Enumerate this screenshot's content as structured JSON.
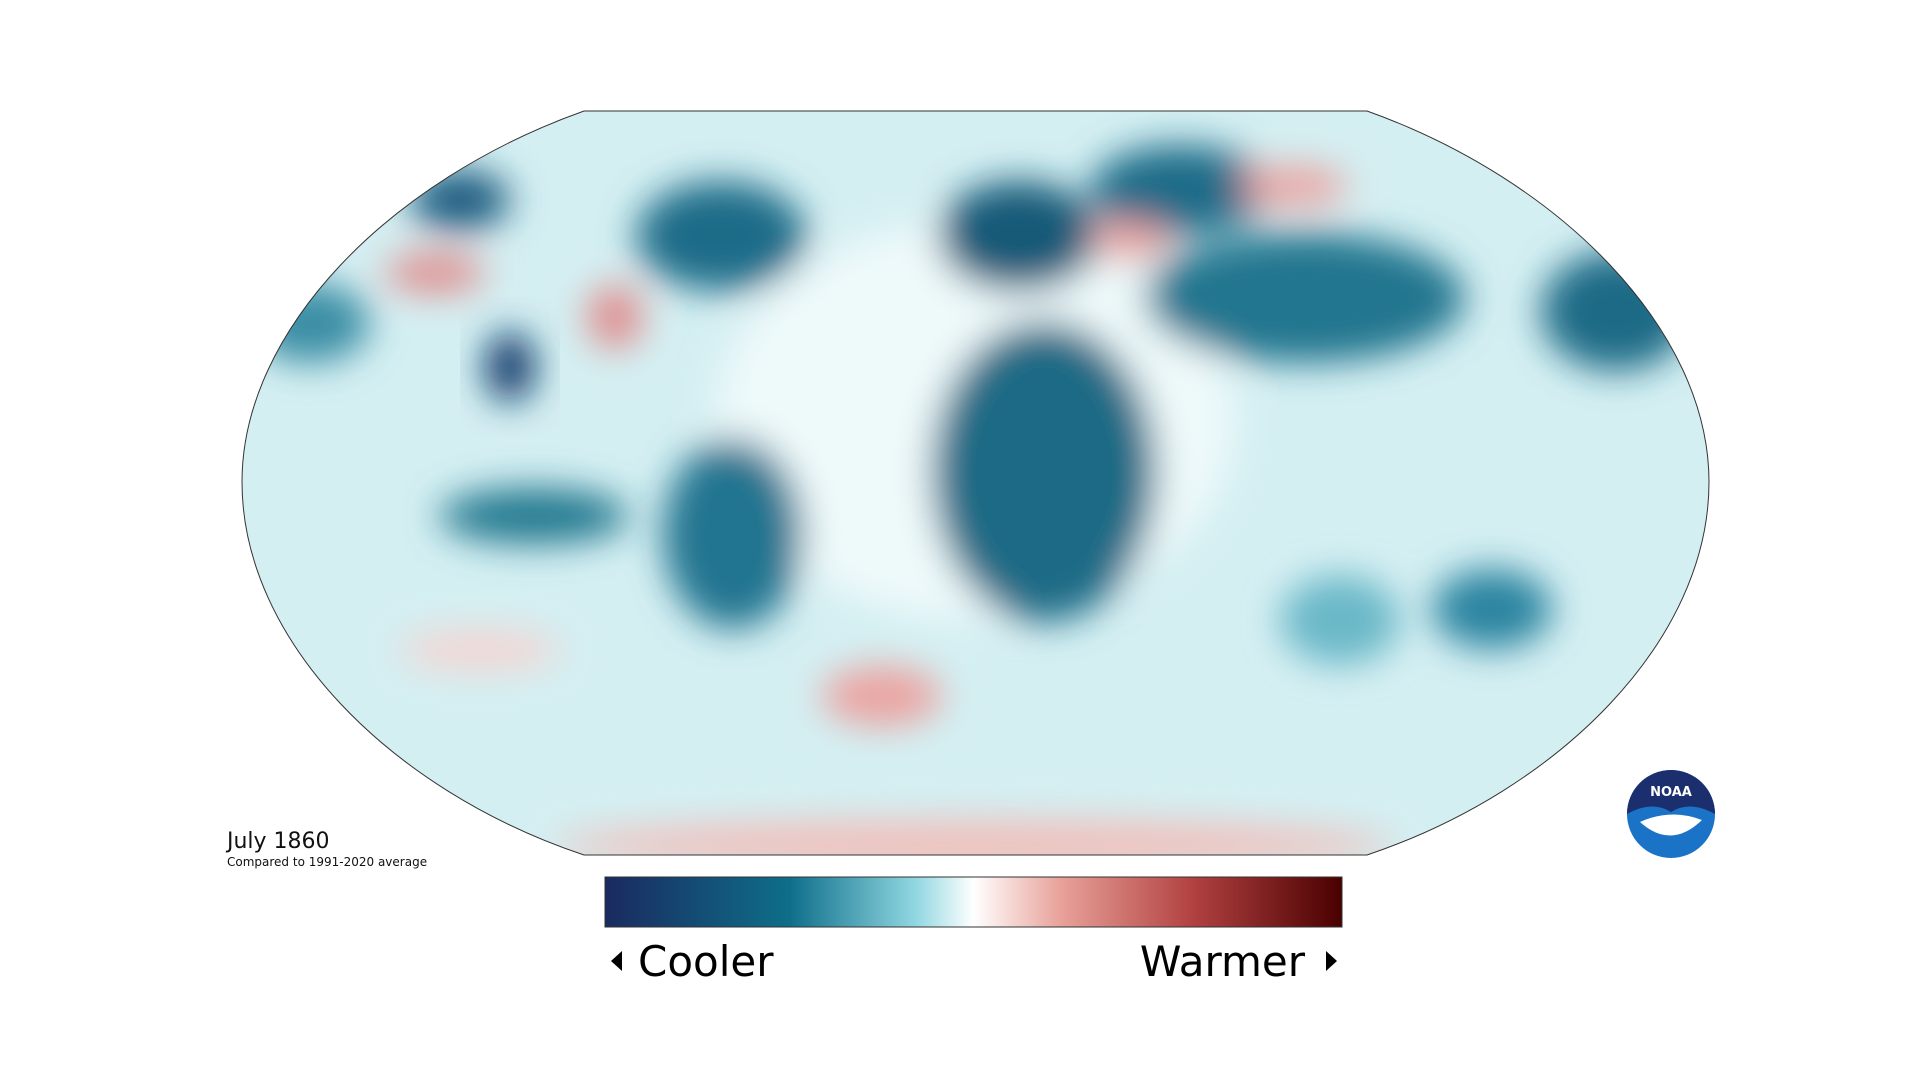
{
  "title": "July 1860",
  "subtitle": "Compared to 1991-2020 average",
  "legend": {
    "low": "Cooler",
    "high": "Warmer"
  },
  "logo": "NOAA"
}
